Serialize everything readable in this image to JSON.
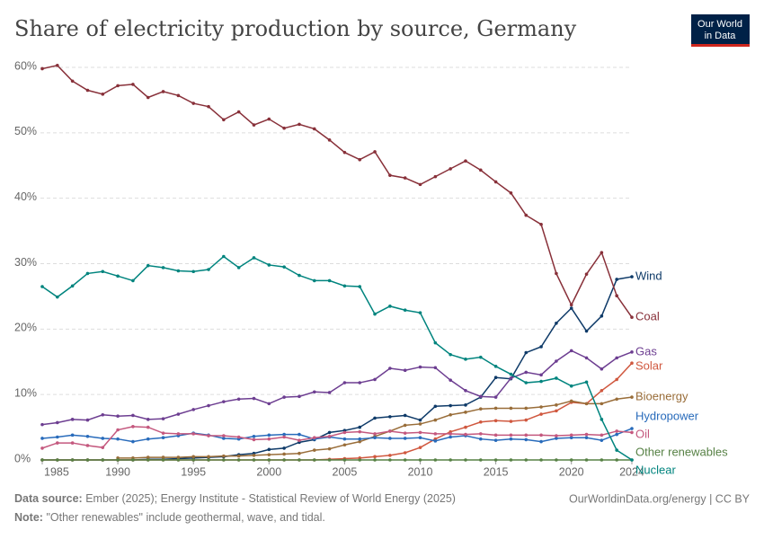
{
  "chart_data": {
    "type": "line",
    "title": "Share of electricity production by source, Germany",
    "logo": [
      "Our World",
      "in Data"
    ],
    "source_label": "Data source:",
    "source": "Ember (2025); Energy Institute - Statistical Review of World Energy (2025)",
    "credit": "OurWorldinData.org/energy | CC BY",
    "note_label": "Note:",
    "note": "\"Other renewables\" include geothermal, wave, and tidal.",
    "x": [
      1985,
      1986,
      1987,
      1988,
      1989,
      1990,
      1991,
      1992,
      1993,
      1994,
      1995,
      1996,
      1997,
      1998,
      1999,
      2000,
      2001,
      2002,
      2003,
      2004,
      2005,
      2006,
      2007,
      2008,
      2009,
      2010,
      2011,
      2012,
      2013,
      2014,
      2015,
      2016,
      2017,
      2018,
      2019,
      2020,
      2021,
      2022,
      2023,
      2024
    ],
    "xlim": [
      1985,
      2024
    ],
    "xticks": [
      1985,
      1990,
      1995,
      2000,
      2005,
      2010,
      2015,
      2020,
      2024
    ],
    "ylim": [
      0,
      60
    ],
    "yticks": [
      {
        "value": 0,
        "label": "0%"
      },
      {
        "value": 10,
        "label": "10%"
      },
      {
        "value": 20,
        "label": "20%"
      },
      {
        "value": 30,
        "label": "30%"
      },
      {
        "value": 40,
        "label": "40%"
      },
      {
        "value": 50,
        "label": "50%"
      },
      {
        "value": 60,
        "label": "60%"
      }
    ],
    "grid": true,
    "series": [
      {
        "name": "Wind",
        "color": "#0e3a68",
        "values": [
          0,
          0,
          0,
          0,
          0,
          0,
          0,
          0.1,
          0.1,
          0.2,
          0.3,
          0.4,
          0.5,
          0.8,
          1.0,
          1.6,
          1.8,
          2.7,
          3.1,
          4.2,
          4.5,
          5.0,
          6.4,
          6.6,
          6.8,
          6.1,
          8.2,
          8.3,
          8.4,
          9.6,
          12.6,
          12.4,
          16.4,
          17.3,
          20.9,
          23.2,
          19.7,
          22.0,
          27.6,
          28.0
        ]
      },
      {
        "name": "Coal",
        "color": "#883039",
        "values": [
          59.8,
          60.3,
          57.9,
          56.5,
          55.9,
          57.2,
          57.4,
          55.4,
          56.3,
          55.7,
          54.5,
          54.0,
          52.0,
          53.2,
          51.2,
          52.1,
          50.7,
          51.3,
          50.6,
          48.9,
          47.0,
          45.9,
          47.1,
          43.5,
          43.1,
          42.1,
          43.3,
          44.5,
          45.7,
          44.3,
          42.5,
          40.8,
          37.4,
          36.0,
          28.5,
          23.7,
          28.4,
          31.7,
          25.1,
          21.8
        ]
      },
      {
        "name": "Gas",
        "color": "#6d3e91",
        "values": [
          5.4,
          5.7,
          6.2,
          6.1,
          6.9,
          6.7,
          6.8,
          6.2,
          6.3,
          7.0,
          7.7,
          8.3,
          8.9,
          9.3,
          9.4,
          8.6,
          9.6,
          9.7,
          10.4,
          10.3,
          11.8,
          11.8,
          12.3,
          14.0,
          13.7,
          14.2,
          14.1,
          12.2,
          10.6,
          9.7,
          9.6,
          12.5,
          13.4,
          13.0,
          15.1,
          16.7,
          15.6,
          13.9,
          15.6,
          16.5
        ]
      },
      {
        "name": "Solar",
        "color": "#d0583f",
        "values": [
          0,
          0,
          0,
          0,
          0,
          0,
          0,
          0,
          0,
          0,
          0,
          0,
          0,
          0,
          0,
          0,
          0,
          0,
          0,
          0.1,
          0.2,
          0.3,
          0.5,
          0.7,
          1.1,
          1.9,
          3.2,
          4.3,
          5.0,
          5.8,
          6.0,
          5.9,
          6.1,
          7.0,
          7.5,
          8.8,
          8.6,
          10.6,
          12.3,
          14.8
        ]
      },
      {
        "name": "Bioenergy",
        "color": "#996d39",
        "values": [
          null,
          null,
          null,
          null,
          null,
          0.3,
          0.3,
          0.4,
          0.4,
          0.4,
          0.5,
          0.5,
          0.6,
          0.6,
          0.7,
          0.8,
          0.9,
          1.0,
          1.5,
          1.7,
          2.3,
          2.8,
          3.6,
          4.4,
          5.3,
          5.5,
          6.1,
          6.9,
          7.3,
          7.8,
          7.9,
          7.9,
          7.9,
          8.1,
          8.4,
          9.0,
          8.6,
          8.6,
          9.3,
          9.6
        ]
      },
      {
        "name": "Hydropower",
        "color": "#286bbb",
        "values": [
          3.3,
          3.5,
          3.8,
          3.6,
          3.3,
          3.2,
          2.8,
          3.2,
          3.4,
          3.7,
          4.1,
          3.8,
          3.3,
          3.2,
          3.6,
          3.8,
          3.9,
          3.9,
          3.2,
          3.5,
          3.2,
          3.2,
          3.4,
          3.3,
          3.3,
          3.4,
          2.9,
          3.5,
          3.7,
          3.2,
          3.0,
          3.2,
          3.1,
          2.8,
          3.3,
          3.4,
          3.4,
          3.0,
          3.9,
          4.8
        ]
      },
      {
        "name": "Oil",
        "color": "#c4587e",
        "values": [
          1.8,
          2.6,
          2.6,
          2.2,
          1.9,
          4.6,
          5.1,
          5.0,
          4.1,
          4.0,
          4.0,
          3.7,
          3.7,
          3.5,
          3.1,
          3.2,
          3.5,
          3.0,
          3.4,
          3.6,
          4.2,
          4.3,
          4.0,
          4.4,
          4.1,
          4.2,
          4.0,
          4.0,
          3.9,
          4.0,
          3.8,
          3.8,
          3.8,
          3.8,
          3.7,
          3.8,
          3.9,
          3.8,
          4.4,
          4.2
        ]
      },
      {
        "name": "Other renewables",
        "color": "#578145",
        "values": [
          0,
          0,
          0,
          0,
          0,
          0,
          0,
          0,
          0,
          0,
          0,
          0,
          0,
          0,
          0,
          0,
          0,
          0,
          0,
          0,
          0,
          0,
          0,
          0,
          0,
          0,
          0,
          0,
          0,
          0,
          0,
          0,
          0,
          0,
          0,
          0,
          0,
          0,
          0,
          0
        ]
      },
      {
        "name": "Nuclear",
        "color": "#00847e",
        "values": [
          26.5,
          24.9,
          26.6,
          28.5,
          28.8,
          28.1,
          27.4,
          29.7,
          29.4,
          28.9,
          28.8,
          29.1,
          31.1,
          29.4,
          30.9,
          29.8,
          29.5,
          28.2,
          27.4,
          27.4,
          26.6,
          26.5,
          22.3,
          23.5,
          22.9,
          22.5,
          17.9,
          16.1,
          15.4,
          15.7,
          14.3,
          13.1,
          11.8,
          12.0,
          12.5,
          11.3,
          11.9,
          6.2,
          1.5,
          0
        ]
      }
    ]
  }
}
